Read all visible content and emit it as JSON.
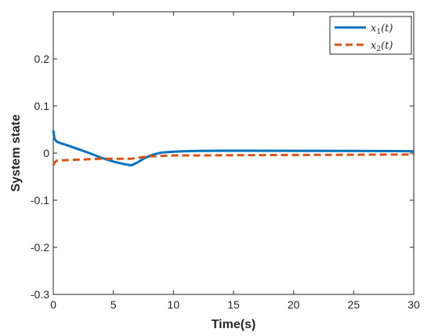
{
  "chart_data": {
    "type": "line",
    "xlabel": "Time(s)",
    "ylabel": "System state",
    "xlim": [
      0,
      30
    ],
    "ylim": [
      -0.3,
      0.3
    ],
    "xticks": [
      0,
      5,
      10,
      15,
      20,
      25,
      30
    ],
    "xtick_labels": [
      "0",
      "5",
      "10",
      "15",
      "20",
      "25",
      "30"
    ],
    "yticks": [
      -0.3,
      -0.2,
      -0.1,
      0,
      0.1,
      0.2
    ],
    "ytick_labels": [
      "-0.3",
      "-0.2",
      "-0.1",
      "0",
      "0.1",
      "0.2"
    ],
    "grid": false,
    "legend_position": "top-right",
    "series": [
      {
        "name": "x1(t)",
        "legend_main": "x",
        "legend_sub": "1",
        "legend_tail": "(t)",
        "color": "#0072BD",
        "style": "solid",
        "points": [
          [
            0,
            0.048
          ],
          [
            0.1,
            0.03
          ],
          [
            0.3,
            0.024
          ],
          [
            0.6,
            0.021
          ],
          [
            1,
            0.018
          ],
          [
            2,
            0.009
          ],
          [
            3,
            0.0
          ],
          [
            4,
            -0.01
          ],
          [
            5,
            -0.018
          ],
          [
            6,
            -0.024
          ],
          [
            6.5,
            -0.026
          ],
          [
            7,
            -0.02
          ],
          [
            7.5,
            -0.012
          ],
          [
            8,
            -0.006
          ],
          [
            8.5,
            -0.002
          ],
          [
            9,
            0.001
          ],
          [
            10,
            0.003
          ],
          [
            11,
            0.004
          ],
          [
            12,
            0.0045
          ],
          [
            14,
            0.005
          ],
          [
            16,
            0.005
          ],
          [
            20,
            0.0048
          ],
          [
            25,
            0.0045
          ],
          [
            30,
            0.004
          ]
        ]
      },
      {
        "name": "x2(t)",
        "legend_main": "x",
        "legend_sub": "2",
        "legend_tail": "(t)",
        "color": "#D95319",
        "style": "dashed",
        "points": [
          [
            0,
            -0.026
          ],
          [
            0.1,
            -0.02
          ],
          [
            0.3,
            -0.016
          ],
          [
            1,
            -0.015
          ],
          [
            2,
            -0.014
          ],
          [
            3,
            -0.013
          ],
          [
            4,
            -0.012
          ],
          [
            5,
            -0.012
          ],
          [
            6.5,
            -0.012
          ],
          [
            7,
            -0.01
          ],
          [
            8,
            -0.007
          ],
          [
            9,
            -0.006
          ],
          [
            10,
            -0.005
          ],
          [
            12,
            -0.005
          ],
          [
            15,
            -0.0045
          ],
          [
            20,
            -0.004
          ],
          [
            25,
            -0.0035
          ],
          [
            30,
            -0.003
          ]
        ]
      }
    ]
  }
}
